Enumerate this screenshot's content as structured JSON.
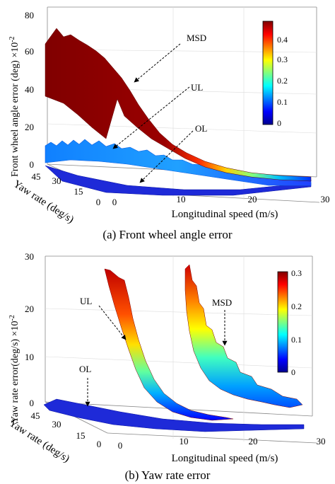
{
  "figure": {
    "panels": [
      {
        "caption": "(a) Front wheel angle error",
        "ylabel": "Front wheel angle error (deg) ×10",
        "ylabel_exp": "-2",
        "xlabel": "Longitudinal speed (m/s)",
        "depthlabel": "Yaw rate (deg/s)",
        "zticks": [
          "0",
          "20",
          "40",
          "60",
          "80"
        ],
        "xticks": [
          "0",
          "10",
          "20",
          "30"
        ],
        "depthticks": [
          "45",
          "30",
          "15",
          "0"
        ],
        "colorbar_ticks": [
          "0",
          "0.1",
          "0.2",
          "0.3",
          "0.4"
        ],
        "annotations": [
          "MSD",
          "UL",
          "OL"
        ]
      },
      {
        "caption": "(b) Yaw rate error",
        "ylabel": "Yaw rate error(deg/s) ×10",
        "ylabel_exp": "-2",
        "xlabel": "Longitudinal speed (m/s)",
        "depthlabel": "Yaw rate (deg/s)",
        "zticks": [
          "0",
          "10",
          "20",
          "30"
        ],
        "xticks": [
          "0",
          "10",
          "20",
          "30"
        ],
        "depthticks": [
          "45",
          "30",
          "15",
          "0"
        ],
        "colorbar_ticks": [
          "0",
          "0.1",
          "0.2",
          "0.3"
        ],
        "annotations": [
          "UL",
          "MSD",
          "OL"
        ]
      }
    ]
  },
  "chart_data": [
    {
      "type": "surface3d",
      "x_label": "Longitudinal speed (m/s)",
      "y_label": "Yaw rate (deg/s)",
      "z_label": "Front wheel angle error (deg) ×10^-2",
      "xlim": [
        0,
        30
      ],
      "ylim": [
        0,
        45
      ],
      "zlim": [
        0,
        80
      ],
      "colorbar_range": [
        0,
        0.48
      ],
      "surfaces": [
        {
          "name": "MSD",
          "x": [
            1,
            3,
            6,
            9,
            12,
            15,
            18,
            21,
            24,
            27
          ],
          "z_high_yaw": [
            72,
            70,
            64,
            52,
            34,
            20,
            11,
            6,
            3,
            2
          ],
          "z_low_yaw": [
            36,
            34,
            30,
            24,
            16,
            10,
            6,
            4,
            2,
            1
          ]
        },
        {
          "name": "UL",
          "x": [
            0,
            5,
            10,
            15,
            20,
            25,
            28
          ],
          "z": [
            10,
            9,
            8,
            6,
            4,
            3,
            2
          ]
        },
        {
          "name": "OL",
          "x": [
            0,
            10,
            20,
            28
          ],
          "z": [
            1,
            1,
            1,
            1
          ]
        }
      ]
    },
    {
      "type": "surface3d",
      "x_label": "Longitudinal speed (m/s)",
      "y_label": "Yaw rate (deg/s)",
      "z_label": "Yaw rate error(deg/s) ×10^-2",
      "xlim": [
        0,
        30
      ],
      "ylim": [
        0,
        45
      ],
      "zlim": [
        0,
        30
      ],
      "colorbar_range": [
        0,
        0.3
      ],
      "surfaces": [
        {
          "name": "UL",
          "x": [
            4,
            7,
            10,
            13,
            16,
            19,
            22,
            25
          ],
          "z": [
            24,
            18,
            12,
            7,
            3,
            1.5,
            0.8,
            0.5
          ]
        },
        {
          "name": "MSD",
          "x": [
            12,
            15,
            18,
            21,
            24,
            27,
            29
          ],
          "z": [
            25,
            20,
            14,
            9,
            6,
            4,
            3
          ]
        },
        {
          "name": "OL",
          "x": [
            0,
            10,
            20,
            28
          ],
          "z": [
            1,
            0.5,
            0.3,
            0.2
          ]
        }
      ]
    }
  ]
}
